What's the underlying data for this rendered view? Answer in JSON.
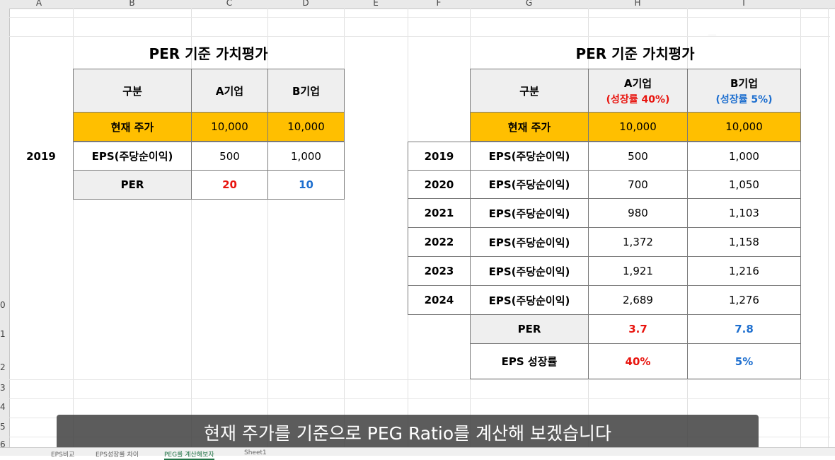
{
  "columns": [
    "A",
    "B",
    "C",
    "D",
    "E",
    "F",
    "G",
    "H",
    "I"
  ],
  "rows": [
    "0",
    "1",
    "2",
    "3",
    "4",
    "5",
    "6"
  ],
  "left_table": {
    "title": "PER 기준 가치평가",
    "header": [
      "구분",
      "A기업",
      "B기업"
    ],
    "price_row": {
      "label": "현재 주가",
      "a": "10,000",
      "b": "10,000"
    },
    "eps_row": {
      "year": "2019",
      "label": "EPS(주당순이익)",
      "a": "500",
      "b": "1,000"
    },
    "per_row": {
      "label": "PER",
      "a": "20",
      "b": "10"
    }
  },
  "right_table": {
    "title": "PER 기준 가치평가",
    "header_label": "구분",
    "a_name": "A기업",
    "a_growth": "(성장률 40%)",
    "b_name": "B기업",
    "b_growth": "(성장률 5%)",
    "price_row": {
      "label": "현재 주가",
      "a": "10,000",
      "b": "10,000"
    },
    "eps_rows": [
      {
        "year": "2019",
        "label": "EPS(주당순이익)",
        "a": "500",
        "b": "1,000"
      },
      {
        "year": "2020",
        "label": "EPS(주당순이익)",
        "a": "700",
        "b": "1,050"
      },
      {
        "year": "2021",
        "label": "EPS(주당순이익)",
        "a": "980",
        "b": "1,103"
      },
      {
        "year": "2022",
        "label": "EPS(주당순이익)",
        "a": "1,372",
        "b": "1,158"
      },
      {
        "year": "2023",
        "label": "EPS(주당순이익)",
        "a": "1,921",
        "b": "1,216"
      },
      {
        "year": "2024",
        "label": "EPS(주당순이익)",
        "a": "2,689",
        "b": "1,276"
      }
    ],
    "per_row": {
      "label": "PER",
      "a": "3.7",
      "b": "7.8"
    },
    "growth_row": {
      "label": "EPS 성장률",
      "a": "40%",
      "b": "5%"
    }
  },
  "subtitle": "현재 주가를 기준으로 PEG Ratio를 계산해 보겠습니다",
  "sheet_tabs": [
    "EPS비교",
    "EPS성장률 차이",
    "PEG를 계산해보자",
    "Sheet1"
  ],
  "colors": {
    "orange": "#ffbf00",
    "red": "#e8140e",
    "blue": "#1e6fcf"
  }
}
